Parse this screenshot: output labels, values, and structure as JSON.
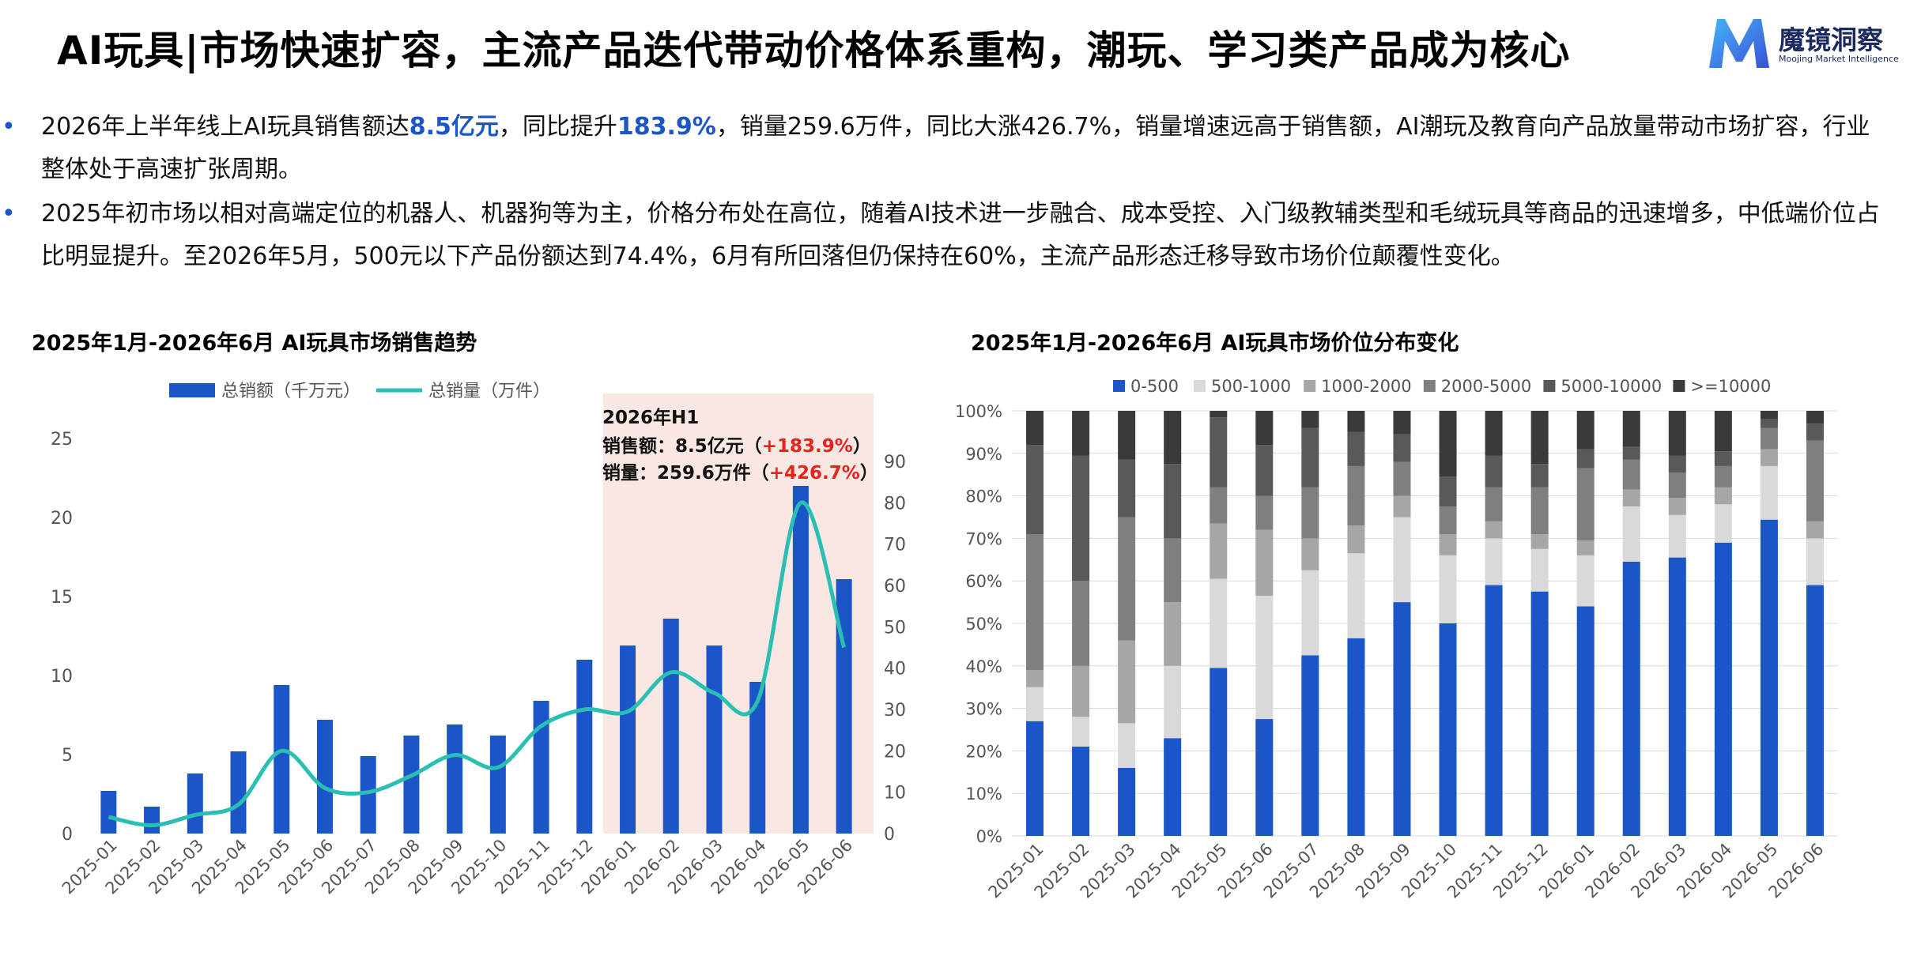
{
  "page": {
    "title": "AI玩具|市场快速扩容，主流产品迭代带动价格体系重构，潮玩、学习类产品成为核心",
    "logo": {
      "name": "魔镜洞察",
      "subtitle": "Moojing Market Intelligence"
    },
    "bullets": [
      {
        "parts": [
          {
            "text": "2026年上半年线上AI玩具销售额达",
            "hl": false
          },
          {
            "text": "8.5亿元",
            "hl": true
          },
          {
            "text": "，同比提升",
            "hl": false
          },
          {
            "text": "183.9%",
            "hl": true
          },
          {
            "text": "，销量259.6万件，同比大涨426.7%，销量增速远高于销售额，AI潮玩及教育向产品放量带动市场扩容，行业整体处于高速扩张周期。",
            "hl": false
          }
        ]
      },
      {
        "parts": [
          {
            "text": "2025年初市场以相对高端定位的机器人、机器狗等为主，价格分布处在高位，随着AI技术进一步融合、成本受控、入门级教辅类型和毛绒玩具等商品的迅速增多，中低端价位占比明显提升。至2026年5月，500元以下产品份额达到74.4%，6月有所回落但仍保持在60%，主流产品形态迁移导致市场价位颠覆性变化。",
            "hl": false
          }
        ]
      }
    ],
    "bullet_symbol": "•"
  },
  "colors": {
    "bar": "#1a56c8",
    "line": "#2bbfb3",
    "highlight_band": "#f9e7e4",
    "red": "#e8221b",
    "stack": [
      "#1a56c8",
      "#d9d9d9",
      "#a6a6a6",
      "#7f7f7f",
      "#595959",
      "#3a3a3a"
    ]
  },
  "chart_data": [
    {
      "type": "bar",
      "title": "2025年1月-2026年6月   AI玩具市场销售趋势",
      "categories": [
        "2025-01",
        "2025-02",
        "2025-03",
        "2025-04",
        "2025-05",
        "2025-06",
        "2025-07",
        "2025-08",
        "2025-09",
        "2025-10",
        "2025-11",
        "2025-12",
        "2026-01",
        "2026-02",
        "2026-03",
        "2026-04",
        "2026-05",
        "2026-06"
      ],
      "series": [
        {
          "name": "总销额（千万元）",
          "type": "bar",
          "axis": "left",
          "values": [
            2.7,
            1.7,
            3.8,
            5.2,
            9.4,
            7.2,
            4.9,
            6.2,
            6.9,
            6.2,
            8.4,
            11.0,
            11.9,
            13.6,
            11.9,
            9.6,
            22.0,
            16.1
          ]
        },
        {
          "name": "总销量（万件）",
          "type": "line",
          "axis": "right",
          "values": [
            4,
            2,
            4.5,
            7,
            20,
            11,
            10,
            14,
            19,
            16,
            26,
            30,
            29.5,
            39,
            34,
            32,
            80,
            45
          ]
        }
      ],
      "left_axis": {
        "ylim": [
          0,
          25
        ],
        "ticks": [
          0,
          5,
          10,
          15,
          20,
          25
        ]
      },
      "right_axis": {
        "ylim": [
          0,
          90
        ],
        "ticks": [
          0,
          10,
          20,
          30,
          40,
          50,
          60,
          70,
          80,
          90
        ]
      },
      "legend_position": "top-left",
      "highlight": {
        "from": "2026-01",
        "to": "2026-06"
      },
      "annotation": {
        "title": "2026年H1",
        "lines": [
          {
            "label": "销售额：8.5亿元（",
            "value": "+183.9%",
            "end": "）"
          },
          {
            "label": "销量：259.6万件（",
            "value": "+426.7%",
            "end": "）"
          }
        ]
      }
    },
    {
      "type": "bar",
      "stacked": true,
      "title": "2025年1月-2026年6月   AI玩具市场价位分布变化",
      "categories": [
        "2025-01",
        "2025-02",
        "2025-03",
        "2025-04",
        "2025-05",
        "2025-06",
        "2025-07",
        "2025-08",
        "2025-09",
        "2025-10",
        "2025-11",
        "2025-12",
        "2026-01",
        "2026-02",
        "2026-03",
        "2026-04",
        "2026-05",
        "2026-06"
      ],
      "series": [
        {
          "name": "0-500",
          "values": [
            27,
            21,
            16,
            23,
            39.5,
            27.5,
            42.5,
            46.5,
            55,
            50,
            59,
            57.5,
            54,
            64.5,
            65.5,
            69,
            74.4,
            59
          ]
        },
        {
          "name": "500-1000",
          "values": [
            8,
            7,
            10.5,
            17,
            21,
            29,
            20,
            20,
            20,
            16,
            11,
            10,
            12,
            13,
            10,
            9,
            12.6,
            11
          ]
        },
        {
          "name": "1000-2000",
          "values": [
            4,
            12,
            19.5,
            15,
            13,
            15.5,
            7.5,
            6.5,
            5,
            5,
            4,
            3.5,
            3.5,
            4,
            4,
            4,
            4,
            4
          ]
        },
        {
          "name": "2000-5000",
          "values": [
            32,
            20,
            29,
            15,
            8.5,
            8,
            12,
            14,
            8,
            6.5,
            8,
            11,
            17,
            7,
            6,
            5,
            5,
            19
          ]
        },
        {
          "name": "5000-10000",
          "values": [
            21,
            29.5,
            13.5,
            17.5,
            16.5,
            12,
            14,
            8,
            6.5,
            7,
            7.5,
            5.5,
            4.5,
            3,
            4,
            3.5,
            2,
            4
          ]
        },
        {
          "name": ">=10000",
          "values": [
            8,
            10.5,
            11.5,
            12.5,
            1.5,
            8,
            4,
            5,
            5.5,
            15.5,
            10.5,
            12.5,
            9,
            8.5,
            10.5,
            9.5,
            2,
            3
          ]
        }
      ],
      "ylim": [
        0,
        100
      ],
      "y_ticks": [
        "0%",
        "10%",
        "20%",
        "30%",
        "40%",
        "50%",
        "60%",
        "70%",
        "80%",
        "90%",
        "100%"
      ],
      "legend_position": "top",
      "grid": true
    }
  ]
}
